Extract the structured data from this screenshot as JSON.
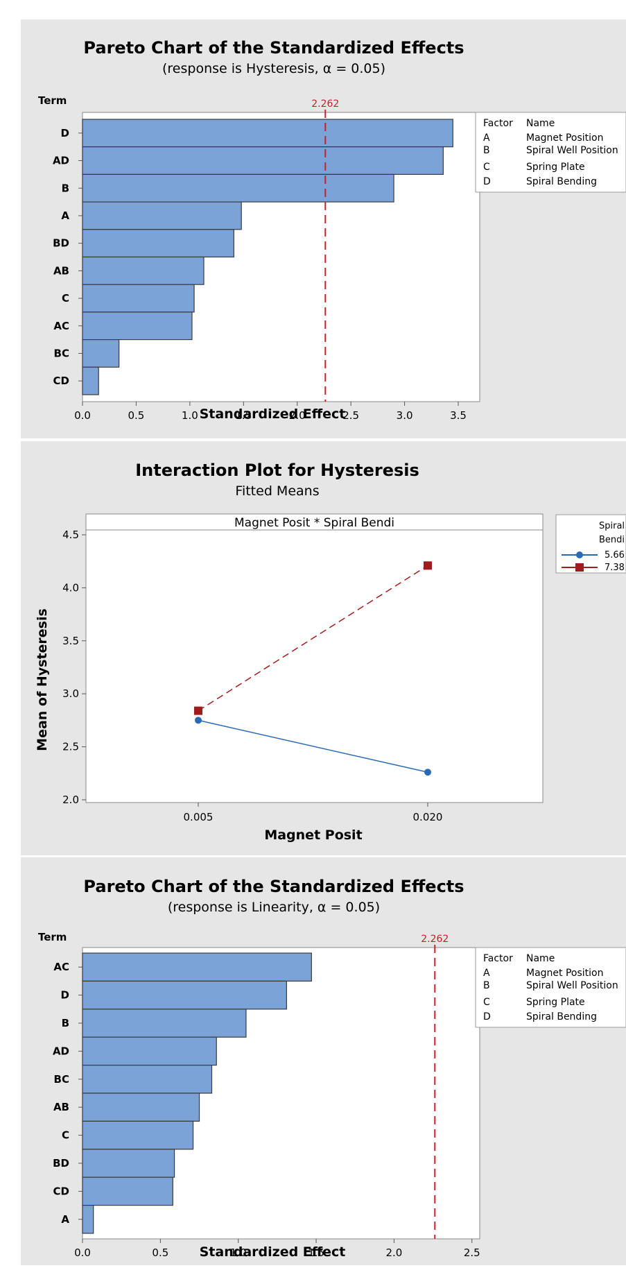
{
  "figures": [
    {
      "id": "pareto-hysteresis",
      "title": "Pareto Chart of the Standardized Effects",
      "subtitle": "(response is Hysteresis, α = 0.05)",
      "term_label": "Term",
      "factor_table": {
        "header_factor": "Factor",
        "header_name": "Name",
        "rows": [
          {
            "factor": "A",
            "name": "Magnet Position"
          },
          {
            "factor": "B",
            "name": "Spiral Well Position"
          },
          {
            "factor": "C",
            "name": "Spring Plate"
          },
          {
            "factor": "D",
            "name": "Spiral Bending"
          }
        ]
      }
    },
    {
      "id": "interaction-hysteresis",
      "title": "Interaction Plot for Hysteresis",
      "subtitle": "Fitted Means",
      "strip_label": "Magnet Posit * Spiral Bendi",
      "legend": {
        "title_line1": "Spiral",
        "title_line2": "Bendi"
      }
    },
    {
      "id": "pareto-linearity",
      "title": "Pareto Chart of the Standardized Effects",
      "subtitle": "(response is Linearity, α = 0.05)",
      "term_label": "Term",
      "factor_table": {
        "header_factor": "Factor",
        "header_name": "Name",
        "rows": [
          {
            "factor": "A",
            "name": "Magnet Position"
          },
          {
            "factor": "B",
            "name": "Spiral Well Position"
          },
          {
            "factor": "C",
            "name": "Spring Plate"
          },
          {
            "factor": "D",
            "name": "Spiral Bending"
          }
        ]
      }
    }
  ],
  "colors": {
    "bar_fill": "#7ba3d8",
    "bar_stroke": "#3a3a3a",
    "reference_line": "#c8202a",
    "series_blue": "#2a6ab3",
    "series_red": "#a01c1c",
    "panel_bg": "#e6e6e6",
    "plot_bg": "#ffffff"
  },
  "chart_data": [
    {
      "type": "bar",
      "orientation": "horizontal",
      "categories": [
        "D",
        "AD",
        "B",
        "A",
        "BD",
        "AB",
        "C",
        "AC",
        "BC",
        "CD"
      ],
      "values": [
        3.45,
        3.36,
        2.9,
        1.48,
        1.41,
        1.13,
        1.04,
        1.02,
        0.34,
        0.15
      ],
      "reference_value": 2.262,
      "reference_label": "2.262",
      "xlabel": "Standardized Effect",
      "ylabel": "Term",
      "xlim": [
        0,
        3.7
      ],
      "xticks": [
        0.0,
        0.5,
        1.0,
        1.5,
        2.0,
        2.5,
        3.0,
        3.5
      ],
      "xtick_labels": [
        "0.0",
        "0.5",
        "1.0",
        "1.5",
        "2.0",
        "2.5",
        "3.0",
        "3.5"
      ],
      "grid": false
    },
    {
      "type": "line",
      "x": [
        0.005,
        0.02
      ],
      "x_labels": [
        "0.005",
        "0.020"
      ],
      "series": [
        {
          "name": "5.66",
          "values": [
            2.75,
            2.26
          ],
          "style": "solid",
          "marker": "circle",
          "color": "#2a6ab3"
        },
        {
          "name": "7.38",
          "values": [
            2.84,
            4.21
          ],
          "style": "dashed",
          "marker": "square",
          "color": "#a01c1c"
        }
      ],
      "xlabel": "Magnet Posit",
      "ylabel": "Mean of Hysteresis",
      "ylim": [
        2.0,
        4.55
      ],
      "yticks": [
        2.0,
        2.5,
        3.0,
        3.5,
        4.0,
        4.5
      ],
      "ytick_labels": [
        "2.0",
        "2.5",
        "3.0",
        "3.5",
        "4.0",
        "4.5"
      ],
      "grid": false
    },
    {
      "type": "bar",
      "orientation": "horizontal",
      "categories": [
        "AC",
        "D",
        "B",
        "AD",
        "BC",
        "AB",
        "C",
        "BD",
        "CD",
        "A"
      ],
      "values": [
        1.47,
        1.31,
        1.05,
        0.86,
        0.83,
        0.75,
        0.71,
        0.59,
        0.58,
        0.07
      ],
      "reference_value": 2.262,
      "reference_label": "2.262",
      "xlabel": "Standardized Effect",
      "ylabel": "Term",
      "xlim": [
        0,
        2.55
      ],
      "xticks": [
        0.0,
        0.5,
        1.0,
        1.5,
        2.0,
        2.5
      ],
      "xtick_labels": [
        "0.0",
        "0.5",
        "1.0",
        "1.5",
        "2.0",
        "2.5"
      ],
      "grid": false
    }
  ]
}
